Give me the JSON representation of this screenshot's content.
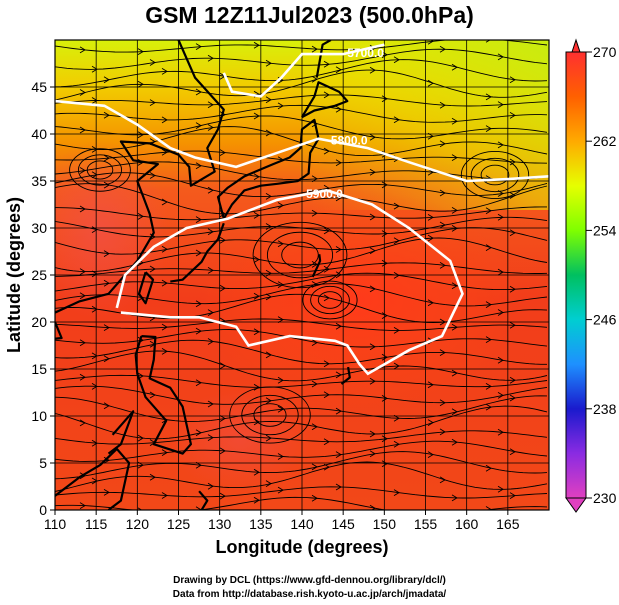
{
  "title": "GSM 12Z11Jul2023 (500.0hPa)",
  "credits": [
    "Drawing by DCL (https://www.gfd-dennou.org/library/dcl/)",
    "Data from http://database.rish.kyoto-u.ac.jp/arch/jmadata/"
  ],
  "chart_data": {
    "type": "heatmap",
    "title": "GSM 12Z11Jul2023 (500.0hPa)",
    "xlabel": "Longitude (degrees)",
    "ylabel": "Latitude  (degrees)",
    "xlim": [
      110,
      170
    ],
    "ylim": [
      0,
      50
    ],
    "x_ticks": [
      110,
      115,
      120,
      125,
      130,
      135,
      140,
      145,
      150,
      155,
      160,
      165
    ],
    "y_ticks": [
      0,
      5,
      10,
      15,
      20,
      25,
      30,
      35,
      40,
      45
    ],
    "grid": true,
    "colorbar": {
      "min": 230,
      "max": 270,
      "tick_labels": [
        230,
        238,
        246,
        254,
        262,
        270
      ],
      "colors": [
        "#e040c0",
        "#8a2be2",
        "#1a1acd",
        "#1e90ff",
        "#00ced1",
        "#00c060",
        "#7fff00",
        "#e6ff00",
        "#ffaa00",
        "#ff6000",
        "#ff3030"
      ]
    },
    "contours": [
      {
        "label": "5700.0",
        "points": [
          [
            130.5,
            46.5
          ],
          [
            131.5,
            44.5
          ],
          [
            135.0,
            44.0
          ],
          [
            137.5,
            46.0
          ],
          [
            140.0,
            48.5
          ],
          [
            145.0,
            48.5
          ],
          [
            150.0,
            49.5
          ]
        ]
      },
      {
        "label": "5800.0",
        "points": [
          [
            110.0,
            43.5
          ],
          [
            116.0,
            43.0
          ],
          [
            120.0,
            41.0
          ],
          [
            124.0,
            38.5
          ],
          [
            127.0,
            37.5
          ],
          [
            132.0,
            36.5
          ],
          [
            137.0,
            38.0
          ],
          [
            142.0,
            39.5
          ],
          [
            148.0,
            38.5
          ],
          [
            153.0,
            37.0
          ],
          [
            160.0,
            35.0
          ],
          [
            165.0,
            35.2
          ],
          [
            170.0,
            35.5
          ]
        ]
      },
      {
        "label": "5900.0",
        "points": [
          [
            117.5,
            21.5
          ],
          [
            118.5,
            25.0
          ],
          [
            122.0,
            28.0
          ],
          [
            126.0,
            30.0
          ],
          [
            131.0,
            31.0
          ],
          [
            137.0,
            33.0
          ],
          [
            143.0,
            34.0
          ],
          [
            148.5,
            32.5
          ],
          [
            153.0,
            30.0
          ],
          [
            158.0,
            26.5
          ],
          [
            159.5,
            23.0
          ],
          [
            157.0,
            18.5
          ],
          [
            153.0,
            17.0
          ],
          [
            148.0,
            14.5
          ],
          [
            147.0,
            15.5
          ],
          [
            145.5,
            17.5
          ],
          [
            144.0,
            18.0
          ],
          [
            138.5,
            18.5
          ],
          [
            133.5,
            17.5
          ],
          [
            132.0,
            19.5
          ],
          [
            127.5,
            20.5
          ],
          [
            124.0,
            20.5
          ],
          [
            118.0,
            21.0
          ]
        ]
      }
    ]
  }
}
